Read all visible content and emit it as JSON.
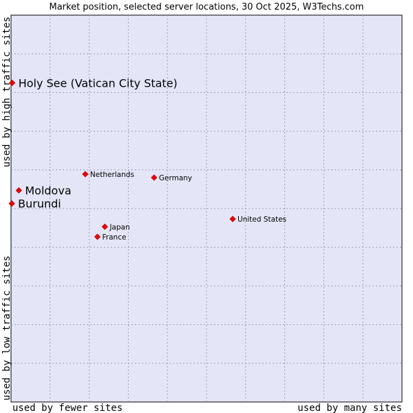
{
  "chart_data": {
    "type": "scatter",
    "title": "Market position, selected server locations, 30 Oct 2025, W3Techs.com",
    "xlabel_left": "used by fewer sites",
    "xlabel_right": "used by many sites",
    "ylabel_bottom": "used by low traffic sites",
    "ylabel_top": "used by high traffic sites",
    "xlim": [
      0,
      100
    ],
    "ylim": [
      0,
      100
    ],
    "grid": true,
    "colors": {
      "plot_bg": "#e4e6f8",
      "marker": "#ee0000",
      "border": "#000000"
    },
    "points": [
      {
        "label": "Holy See (Vatican City State)",
        "x": 0.3,
        "y": 82.5,
        "highlight": true
      },
      {
        "label": "Moldova",
        "x": 2.0,
        "y": 54.7,
        "highlight": true
      },
      {
        "label": "Burundi",
        "x": 0.2,
        "y": 51.3,
        "highlight": true
      },
      {
        "label": "Netherlands",
        "x": 19.0,
        "y": 58.9,
        "highlight": false
      },
      {
        "label": "Germany",
        "x": 36.6,
        "y": 58.0,
        "highlight": false
      },
      {
        "label": "United States",
        "x": 56.7,
        "y": 47.3,
        "highlight": false
      },
      {
        "label": "Japan",
        "x": 24.0,
        "y": 45.3,
        "highlight": false
      },
      {
        "label": "France",
        "x": 22.1,
        "y": 42.7,
        "highlight": false
      }
    ]
  }
}
